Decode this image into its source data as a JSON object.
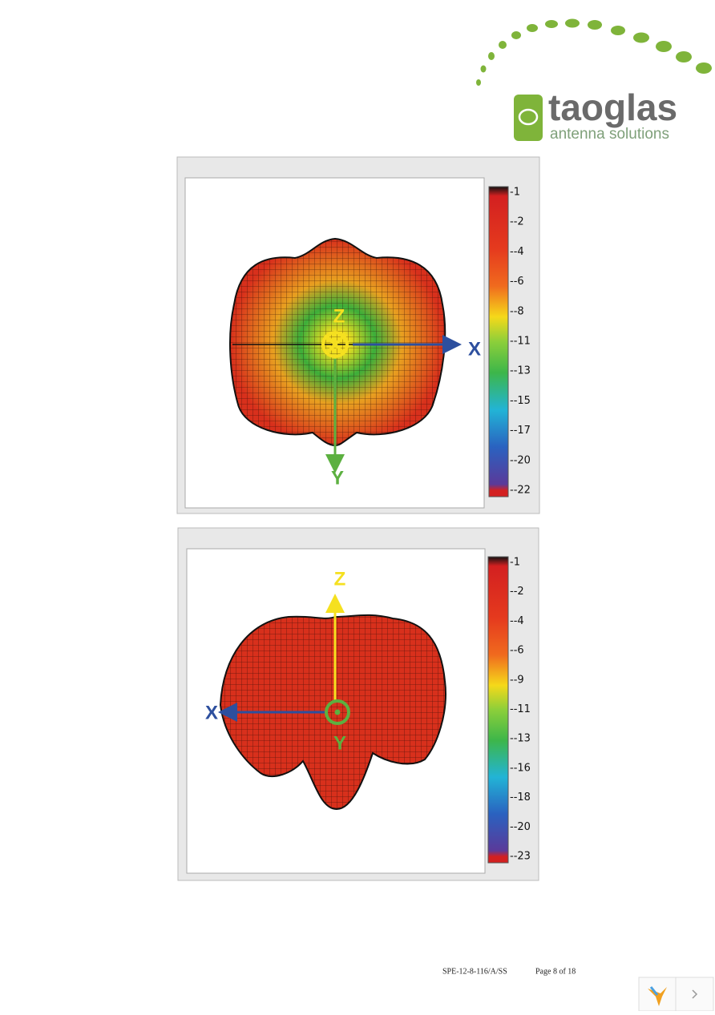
{
  "header": {
    "logo_name": "taoglas",
    "logo_tagline": "antenna solutions"
  },
  "figures": [
    {
      "scale_labels": [
        "-1",
        "--2",
        "--4",
        "--6",
        "--8",
        "--11",
        "--13",
        "--15",
        "--17",
        "--20",
        "--22"
      ],
      "axes": {
        "z": "Z",
        "x": "X",
        "y": "Y"
      }
    },
    {
      "scale_labels": [
        "-1",
        "--2",
        "--4",
        "--6",
        "--9",
        "--11",
        "--13",
        "--16",
        "--18",
        "--20",
        "--23"
      ],
      "axes": {
        "z": "Z",
        "x": "X",
        "y": "Y"
      }
    }
  ],
  "footer": {
    "doc_id": "SPE-12-8-116/A/SS",
    "page": "Page 8 of 18"
  }
}
